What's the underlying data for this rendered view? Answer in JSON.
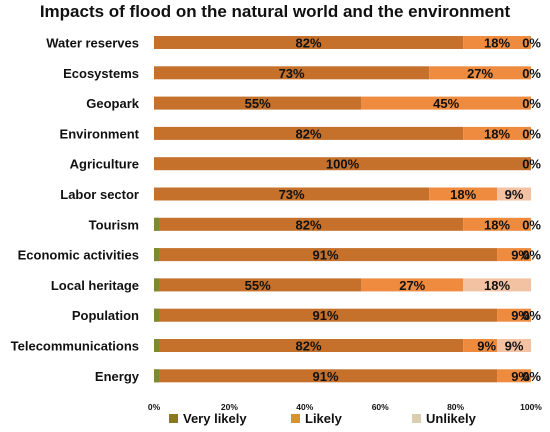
{
  "chart_data": {
    "type": "bar",
    "orientation": "horizontal",
    "stacked": true,
    "title": "Impacts of flood on the natural world and the environment",
    "categories": [
      "Water reserves",
      "Ecosystems",
      "Geopark",
      "Environment",
      "Agriculture",
      "Labor sector",
      "Tourism",
      "Economic activities",
      "Local heritage",
      "Population",
      "Telecommunications",
      "Energy"
    ],
    "series": [
      {
        "name": "Very likely",
        "values": [
          82,
          73,
          55,
          82,
          100,
          73,
          82,
          91,
          55,
          91,
          82,
          91
        ],
        "labels": [
          "82%",
          "73%",
          "55%",
          "82%",
          "100%",
          "73%",
          "82%",
          "91%",
          "55%",
          "91%",
          "82%",
          "91%"
        ]
      },
      {
        "name": "Likely",
        "values": [
          18,
          27,
          45,
          18,
          0,
          18,
          18,
          9,
          27,
          9,
          9,
          9
        ],
        "labels": [
          "18%",
          "27%",
          "45%",
          "18%",
          "",
          "18%",
          "18%",
          "9%",
          "27%",
          "9%",
          "9%",
          "9%"
        ]
      },
      {
        "name": "Unlikely",
        "values": [
          0,
          0,
          0,
          0,
          0,
          9,
          0,
          0,
          18,
          0,
          9,
          0
        ],
        "labels": [
          "0%",
          "0%",
          "0%",
          "0%",
          "0%",
          "9%",
          "0%",
          "0%",
          "18%",
          "0%",
          "9%",
          "0%"
        ]
      }
    ],
    "bar_colors": [
      [
        "#c5702b",
        "#ee8b3f",
        "#f3c2a3"
      ],
      [
        "#c5702b",
        "#ee8b3f",
        "#f3c2a3"
      ],
      [
        "#c5702b",
        "#ee8b3f",
        "#f3c2a3"
      ],
      [
        "#c5702b",
        "#ee8b3f",
        "#f3c2a3"
      ],
      [
        "#c5702b",
        "#ee8b3f",
        "#f3c2a3"
      ],
      [
        "#c5702b",
        "#ee8b3f",
        "#f3c2a3"
      ],
      [
        "#c5702b",
        "#ee8b3f",
        "#f3c2a3"
      ],
      [
        "#c5702b",
        "#ee8b3f",
        "#f3c2a3"
      ],
      [
        "#c5702b",
        "#ee8b3f",
        "#f3c2a3"
      ],
      [
        "#c5702b",
        "#ee8b3f",
        "#f3c2a3"
      ],
      [
        "#c5702b",
        "#ee8b3f",
        "#f3c2a3"
      ],
      [
        "#c5702b",
        "#ee8b3f",
        "#f3c2a3"
      ]
    ],
    "green_start_rows": [
      6,
      7,
      8,
      9,
      10,
      11
    ],
    "green_color": "#7b8b2e",
    "legend_colors": [
      "#8a7a1f",
      "#d8932e",
      "#d9cfae"
    ],
    "x_ticks": [
      "0%",
      "20%",
      "40%",
      "60%",
      "80%",
      "100%"
    ],
    "xlim": [
      0,
      100
    ],
    "legend_position": "bottom",
    "grid": false
  }
}
